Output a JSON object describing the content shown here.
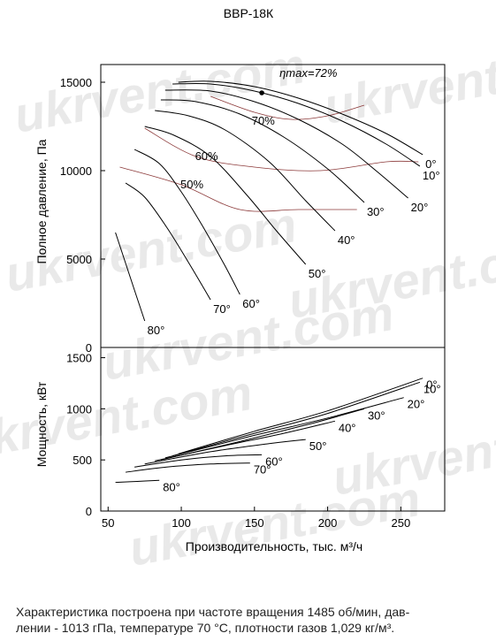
{
  "chart_data": {
    "type": "line",
    "title": "ВВР-18К",
    "xlabel": "Производительность, тыс. м³/ч",
    "x_ticks": [
      "50",
      "100",
      "150",
      "200",
      "250"
    ],
    "xlim": [
      45,
      280
    ],
    "upper": {
      "ylabel": "Полное давление, Па",
      "ylim": [
        0,
        16000
      ],
      "y_ticks": [
        "0",
        "5000",
        "10000",
        "15000"
      ],
      "series": [
        {
          "name": "0°",
          "points": [
            [
              98,
              15000
            ],
            [
              120,
              15050
            ],
            [
              150,
              14750
            ],
            [
              180,
              14100
            ],
            [
              210,
              13200
            ],
            [
              240,
              12100
            ],
            [
              265,
              10900
            ]
          ]
        },
        {
          "name": "10°",
          "points": [
            [
              94,
              14900
            ],
            [
              120,
              14900
            ],
            [
              150,
              14500
            ],
            [
              180,
              13800
            ],
            [
              210,
              12800
            ],
            [
              240,
              11500
            ],
            [
              263,
              10250
            ]
          ]
        },
        {
          "name": "20°",
          "points": [
            [
              89,
              14550
            ],
            [
              120,
              14500
            ],
            [
              150,
              13900
            ],
            [
              180,
              12900
            ],
            [
              210,
              11500
            ],
            [
              233,
              10000
            ],
            [
              255,
              8450
            ]
          ]
        },
        {
          "name": "30°",
          "points": [
            [
              86,
              14000
            ],
            [
              110,
              13900
            ],
            [
              140,
              13200
            ],
            [
              170,
              11900
            ],
            [
              200,
              10100
            ],
            [
              225,
              8200
            ]
          ]
        },
        {
          "name": "40°",
          "points": [
            [
              82,
              13400
            ],
            [
              105,
              13100
            ],
            [
              130,
              12300
            ],
            [
              160,
              10500
            ],
            [
              185,
              8300
            ],
            [
              205,
              6600
            ]
          ]
        },
        {
          "name": "50°",
          "points": [
            [
              75,
              12500
            ],
            [
              95,
              12000
            ],
            [
              120,
              10800
            ],
            [
              145,
              8600
            ],
            [
              165,
              6600
            ],
            [
              185,
              4700
            ]
          ]
        },
        {
          "name": "60°",
          "points": [
            [
              68,
              11200
            ],
            [
              85,
              10400
            ],
            [
              100,
              8800
            ],
            [
              115,
              6800
            ],
            [
              130,
              4600
            ],
            [
              140,
              3000
            ]
          ]
        },
        {
          "name": "70°",
          "points": [
            [
              62,
              9300
            ],
            [
              75,
              8500
            ],
            [
              90,
              6800
            ],
            [
              105,
              4800
            ],
            [
              120,
              2700
            ]
          ]
        },
        {
          "name": "80°",
          "points": [
            [
              55,
              6500
            ],
            [
              65,
              4000
            ],
            [
              75,
              1500
            ]
          ]
        }
      ],
      "efficiency": [
        {
          "label": "70%",
          "points": [
            [
              120,
              14200
            ],
            [
              150,
              13300
            ],
            [
              175,
              12900
            ],
            [
              200,
              13100
            ],
            [
              225,
              13700
            ]
          ]
        },
        {
          "label": "60%",
          "points": [
            [
              75,
              12400
            ],
            [
              110,
              10800
            ],
            [
              150,
              10200
            ],
            [
              195,
              10000
            ],
            [
              240,
              10500
            ],
            [
              262,
              10500
            ]
          ]
        },
        {
          "label": "50%",
          "points": [
            [
              58,
              10200
            ],
            [
              100,
              9200
            ],
            [
              140,
              7800
            ],
            [
              180,
              7800
            ],
            [
              220,
              7800
            ]
          ]
        }
      ],
      "eta_max": {
        "label": "ηmax=72%",
        "point": [
          155,
          14400
        ]
      }
    },
    "lower": {
      "ylabel": "Мощность, кВт",
      "ylim": [
        0,
        1600
      ],
      "y_ticks": [
        "0",
        "500",
        "1000",
        "1500"
      ],
      "series": [
        {
          "name": "0°",
          "points": [
            [
              98,
              560
            ],
            [
              150,
              780
            ],
            [
              200,
              980
            ],
            [
              265,
              1300
            ]
          ]
        },
        {
          "name": "10°",
          "points": [
            [
              94,
              540
            ],
            [
              150,
              760
            ],
            [
              200,
              955
            ],
            [
              263,
              1260
            ]
          ]
        },
        {
          "name": "20°",
          "points": [
            [
              89,
              520
            ],
            [
              150,
              740
            ],
            [
              200,
              910
            ],
            [
              252,
              1110
            ]
          ]
        },
        {
          "name": "30°",
          "points": [
            [
              86,
              500
            ],
            [
              140,
              680
            ],
            [
              190,
              860
            ],
            [
              225,
              1000
            ]
          ]
        },
        {
          "name": "40°",
          "points": [
            [
              82,
              490
            ],
            [
              130,
              640
            ],
            [
              170,
              760
            ],
            [
              205,
              880
            ]
          ]
        },
        {
          "name": "50°",
          "points": [
            [
              75,
              460
            ],
            [
              120,
              580
            ],
            [
              160,
              660
            ],
            [
              185,
              700
            ]
          ]
        },
        {
          "name": "60°",
          "points": [
            [
              68,
              430
            ],
            [
              100,
              500
            ],
            [
              130,
              540
            ],
            [
              155,
              550
            ]
          ]
        },
        {
          "name": "70°",
          "points": [
            [
              62,
              380
            ],
            [
              90,
              430
            ],
            [
              120,
              460
            ],
            [
              147,
              470
            ]
          ]
        },
        {
          "name": "80°",
          "points": [
            [
              55,
              280
            ],
            [
              70,
              290
            ],
            [
              85,
              300
            ]
          ]
        }
      ]
    }
  },
  "watermark": "ukrvent.com",
  "caption_line1": "Характеристика построена при частоте вращения 1485 об/мин, дав-",
  "caption_line2": "лении - 1013 гПа, температуре 70 °С, плотности газов 1,029 кг/м³."
}
